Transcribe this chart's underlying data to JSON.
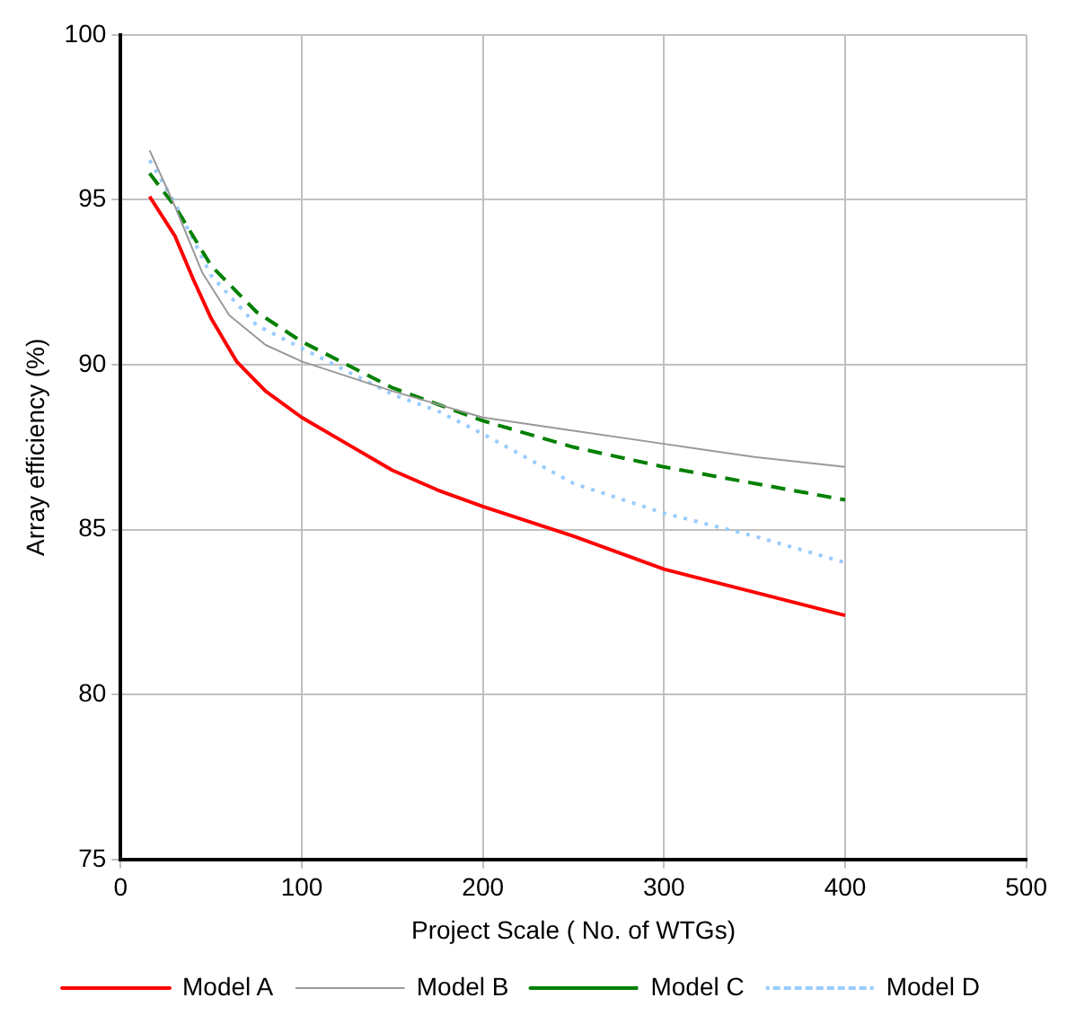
{
  "chart_data": {
    "type": "line",
    "xlabel": "Project Scale ( No. of WTGs)",
    "ylabel": "Array efficiency (%)",
    "xlim": [
      0,
      500
    ],
    "xticks": [
      0,
      100,
      200,
      300,
      400,
      500
    ],
    "ylim": [
      75,
      100
    ],
    "yticks": [
      75,
      80,
      85,
      90,
      95,
      100
    ],
    "grid": true,
    "legend": "bottom",
    "marker": "none",
    "series": [
      {
        "name": "Model A",
        "color": "#ff0000",
        "line_style": "solid",
        "x": [
          16,
          30,
          40,
          50,
          64,
          80,
          100,
          125,
          150,
          175,
          200,
          250,
          300,
          350,
          400
        ],
        "values": [
          95.1,
          93.9,
          92.6,
          91.4,
          90.1,
          89.2,
          88.4,
          87.6,
          86.8,
          86.2,
          85.7,
          84.8,
          83.8,
          83.1,
          82.4
        ]
      },
      {
        "name": "Model B",
        "color": "#999999",
        "line_style": "solid",
        "x": [
          16,
          30,
          45,
          60,
          80,
          100,
          150,
          200,
          250,
          300,
          350,
          400
        ],
        "values": [
          96.5,
          94.8,
          92.8,
          91.5,
          90.6,
          90.1,
          89.2,
          88.4,
          88.0,
          87.6,
          87.2,
          86.9
        ]
      },
      {
        "name": "Model C",
        "color": "#008000",
        "line_style": "dashed",
        "x": [
          16,
          30,
          50,
          75,
          100,
          125,
          150,
          175,
          200,
          250,
          300,
          350,
          400
        ],
        "values": [
          95.8,
          94.8,
          93.0,
          91.6,
          90.7,
          90.0,
          89.3,
          88.8,
          88.3,
          87.5,
          86.9,
          86.4,
          85.9
        ]
      },
      {
        "name": "Model D",
        "color": "#99ccff",
        "line_style": "dotted",
        "x": [
          16,
          30,
          50,
          75,
          100,
          150,
          175,
          200,
          250,
          300,
          350,
          400
        ],
        "values": [
          96.2,
          94.9,
          92.7,
          91.2,
          90.5,
          89.1,
          88.6,
          87.9,
          86.4,
          85.5,
          84.8,
          84.0
        ]
      }
    ]
  }
}
